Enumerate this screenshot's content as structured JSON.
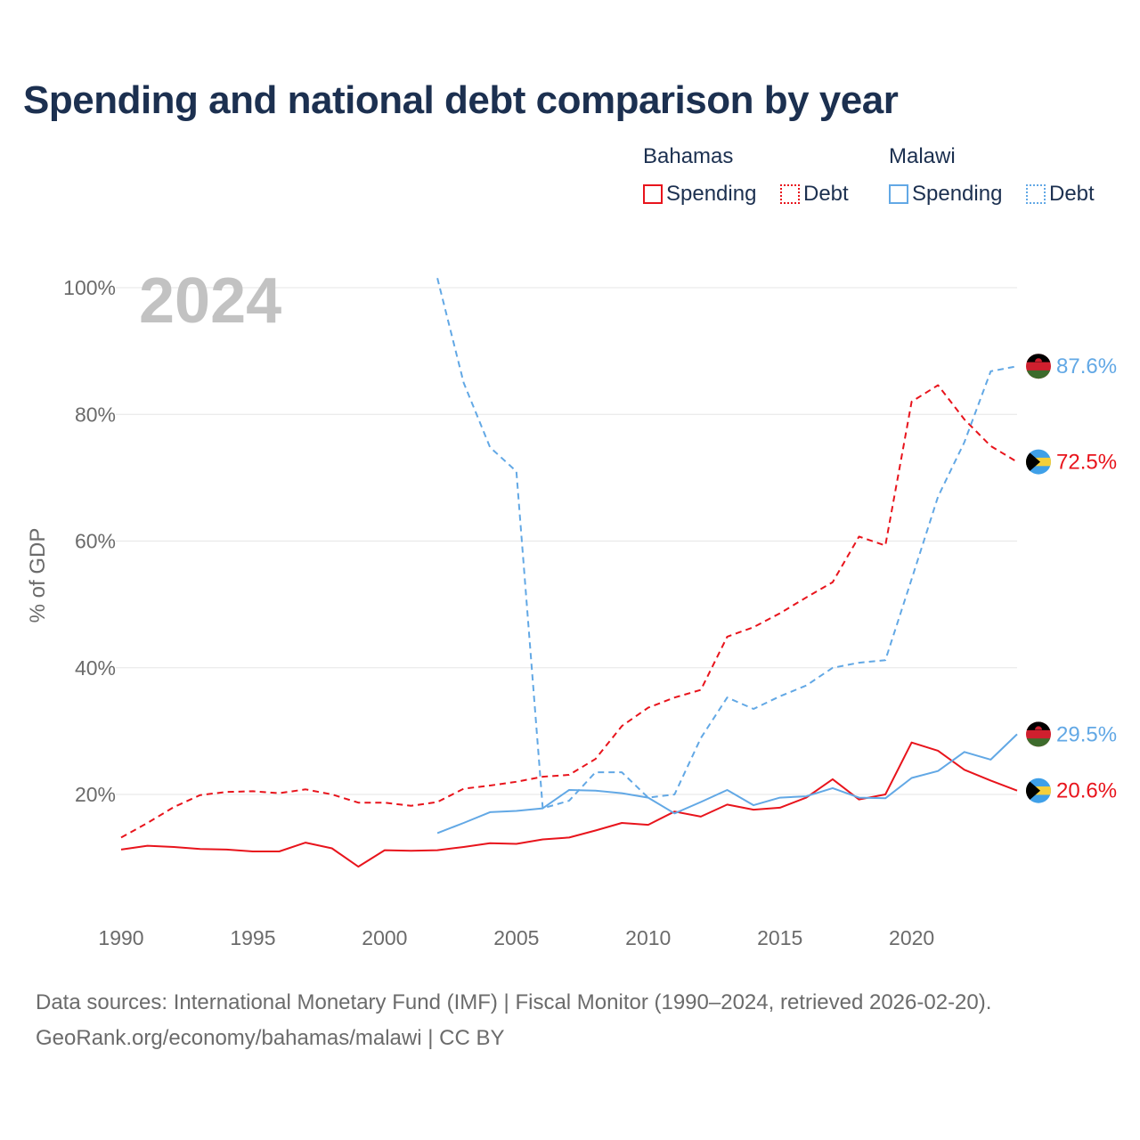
{
  "title": "Spending and national debt comparison by year",
  "legend": {
    "groups": [
      {
        "name": "Bahamas",
        "color": "#e8141c",
        "items": [
          "Spending",
          "Debt"
        ]
      },
      {
        "name": "Malawi",
        "color": "#62a8e5",
        "items": [
          "Spending",
          "Debt"
        ]
      }
    ]
  },
  "year_label": "2024",
  "source": {
    "line1": "Data sources: International Monetary Fund (IMF) | Fiscal Monitor (1990–2024, retrieved 2026-02-20).",
    "line2": "GeoRank.org/economy/bahamas/malawi | CC BY"
  },
  "chart_data": {
    "type": "line",
    "ylabel": "% of GDP",
    "xlabel": "",
    "xlim": [
      1990,
      2024
    ],
    "ylim": [
      0,
      100
    ],
    "x_ticks": [
      1990,
      1995,
      2000,
      2005,
      2010,
      2015,
      2020
    ],
    "y_ticks": [
      20,
      40,
      60,
      80,
      100
    ],
    "y_tick_labels": [
      "20%",
      "40%",
      "60%",
      "80%",
      "100%"
    ],
    "grid": true,
    "series": [
      {
        "name": "Bahamas Spending",
        "country": "Bahamas",
        "metric": "Spending",
        "color": "#e8141c",
        "dash": false,
        "end_label": "20.6%",
        "flag": "bahamas",
        "x": [
          1990,
          1991,
          1992,
          1993,
          1994,
          1995,
          1996,
          1997,
          1998,
          1999,
          2000,
          2001,
          2002,
          2003,
          2004,
          2005,
          2006,
          2007,
          2008,
          2009,
          2010,
          2011,
          2012,
          2013,
          2014,
          2015,
          2016,
          2017,
          2018,
          2019,
          2020,
          2021,
          2022,
          2023,
          2024
        ],
        "values": [
          11.3,
          11.9,
          11.7,
          11.4,
          11.3,
          11.0,
          11.0,
          12.4,
          11.5,
          8.6,
          11.2,
          11.1,
          11.2,
          11.7,
          12.3,
          12.2,
          12.9,
          13.2,
          14.3,
          15.5,
          15.2,
          17.3,
          16.5,
          18.4,
          17.6,
          17.9,
          19.5,
          22.4,
          19.2,
          20.0,
          28.2,
          26.9,
          23.9,
          22.2,
          20.6
        ]
      },
      {
        "name": "Bahamas Debt",
        "country": "Bahamas",
        "metric": "Debt",
        "color": "#e8141c",
        "dash": true,
        "end_label": "72.5%",
        "flag": "bahamas",
        "x": [
          1990,
          1991,
          1992,
          1993,
          1994,
          1995,
          1996,
          1997,
          1998,
          1999,
          2000,
          2001,
          2002,
          2003,
          2004,
          2005,
          2006,
          2007,
          2008,
          2009,
          2010,
          2011,
          2012,
          2013,
          2014,
          2015,
          2016,
          2017,
          2018,
          2019,
          2020,
          2021,
          2022,
          2023,
          2024
        ],
        "values": [
          13.2,
          15.5,
          18.0,
          19.9,
          20.4,
          20.5,
          20.2,
          20.8,
          20.0,
          18.7,
          18.7,
          18.2,
          18.8,
          20.9,
          21.4,
          22.0,
          22.8,
          23.1,
          25.6,
          30.8,
          33.7,
          35.3,
          36.5,
          44.9,
          46.4,
          48.6,
          51.1,
          53.5,
          60.7,
          59.3,
          82.0,
          84.6,
          79.2,
          75.0,
          72.5
        ]
      },
      {
        "name": "Malawi Spending",
        "country": "Malawi",
        "metric": "Spending",
        "color": "#62a8e5",
        "dash": false,
        "end_label": "29.5%",
        "flag": "malawi",
        "x": [
          2002,
          2003,
          2004,
          2005,
          2006,
          2007,
          2008,
          2009,
          2010,
          2011,
          2012,
          2013,
          2014,
          2015,
          2016,
          2017,
          2018,
          2019,
          2020,
          2021,
          2022,
          2023,
          2024
        ],
        "values": [
          13.9,
          15.5,
          17.2,
          17.4,
          17.8,
          20.7,
          20.6,
          20.2,
          19.5,
          17.0,
          18.8,
          20.7,
          18.3,
          19.5,
          19.7,
          21.0,
          19.5,
          19.4,
          22.6,
          23.7,
          26.7,
          25.5,
          29.5
        ]
      },
      {
        "name": "Malawi Debt",
        "country": "Malawi",
        "metric": "Debt",
        "color": "#62a8e5",
        "dash": true,
        "end_label": "87.6%",
        "flag": "malawi",
        "x": [
          2002,
          2003,
          2004,
          2005,
          2006,
          2007,
          2008,
          2009,
          2010,
          2011,
          2012,
          2013,
          2014,
          2015,
          2016,
          2017,
          2018,
          2019,
          2020,
          2021,
          2022,
          2023,
          2024
        ],
        "values": [
          101.5,
          85.0,
          74.8,
          71.0,
          17.8,
          19.0,
          23.5,
          23.5,
          19.5,
          20.0,
          28.9,
          35.3,
          33.5,
          35.5,
          37.2,
          40.0,
          40.8,
          41.2,
          54.0,
          67.0,
          75.6,
          86.8,
          87.6
        ]
      }
    ]
  }
}
